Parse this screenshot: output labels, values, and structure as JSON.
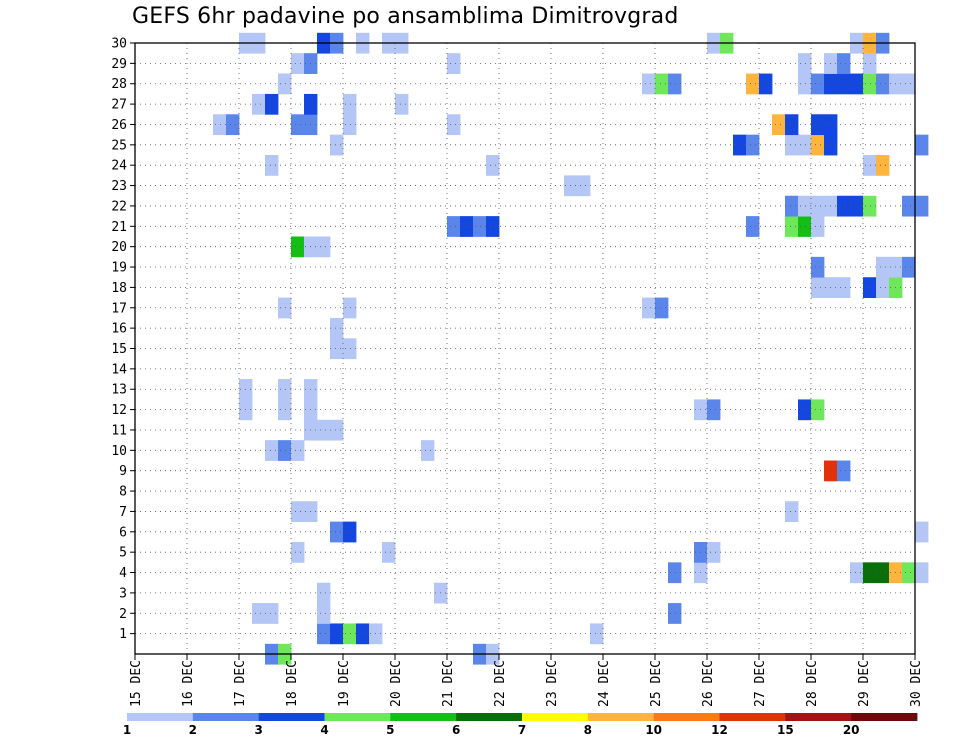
{
  "chart_data": {
    "type": "heatmap",
    "title": "GEFS 6hr padavine po ansamblima Dimitrovgrad",
    "xlabel": "",
    "ylabel": "",
    "x_ticks": [
      "15 DEC",
      "16 DEC",
      "17 DEC",
      "18 DEC",
      "19 DEC",
      "20 DEC",
      "21 DEC",
      "22 DEC",
      "23 DEC",
      "24 DEC",
      "25 DEC",
      "26 DEC",
      "27 DEC",
      "28 DEC",
      "29 DEC",
      "30 DEC"
    ],
    "xlim": [
      "15 DEC",
      "30 DEC"
    ],
    "time_step_hours": 6,
    "y_members": [
      1,
      2,
      3,
      4,
      5,
      6,
      7,
      8,
      9,
      10,
      11,
      12,
      13,
      14,
      15,
      16,
      17,
      18,
      19,
      20,
      21,
      22,
      23,
      24,
      25,
      26,
      27,
      28,
      29,
      30
    ],
    "ylim": [
      0,
      30
    ],
    "grid": true,
    "legend_placement": "bottom",
    "levels": [
      1,
      2,
      3,
      4,
      5,
      6,
      7,
      8,
      10,
      12,
      15,
      20
    ],
    "level_colors": [
      "#b4c6f5",
      "#5a86ec",
      "#1446e0",
      "#6ee85a",
      "#14be14",
      "#0a6e0a",
      "#ffff00",
      "#ffb43c",
      "#ff7a14",
      "#e1320a",
      "#a51414",
      "#6e0a0a"
    ],
    "cells": [
      {
        "m": 0,
        "d": "17 DEC",
        "h": 12,
        "v": 2.5
      },
      {
        "m": 0,
        "d": "17 DEC",
        "h": 18,
        "v": 4.5
      },
      {
        "m": 0,
        "d": "21 DEC",
        "h": 12,
        "v": 2.5
      },
      {
        "m": 0,
        "d": "21 DEC",
        "h": 18,
        "v": 1.5
      },
      {
        "m": 1,
        "d": "18 DEC",
        "h": 12,
        "v": 2.5
      },
      {
        "m": 1,
        "d": "18 DEC",
        "h": 18,
        "v": 3.5
      },
      {
        "m": 1,
        "d": "19 DEC",
        "h": 0,
        "v": 4.5
      },
      {
        "m": 1,
        "d": "19 DEC",
        "h": 6,
        "v": 3.5
      },
      {
        "m": 1,
        "d": "19 DEC",
        "h": 12,
        "v": 1.5
      },
      {
        "m": 1,
        "d": "23 DEC",
        "h": 18,
        "v": 1.5
      },
      {
        "m": 2,
        "d": "17 DEC",
        "h": 6,
        "v": 1.5
      },
      {
        "m": 2,
        "d": "17 DEC",
        "h": 12,
        "v": 1.5
      },
      {
        "m": 2,
        "d": "18 DEC",
        "h": 12,
        "v": 1.5
      },
      {
        "m": 2,
        "d": "25 DEC",
        "h": 6,
        "v": 2.5
      },
      {
        "m": 3,
        "d": "18 DEC",
        "h": 12,
        "v": 1.5
      },
      {
        "m": 3,
        "d": "20 DEC",
        "h": 18,
        "v": 1.5
      },
      {
        "m": 4,
        "d": "25 DEC",
        "h": 6,
        "v": 2.5
      },
      {
        "m": 4,
        "d": "25 DEC",
        "h": 18,
        "v": 1.5
      },
      {
        "m": 4,
        "d": "28 DEC",
        "h": 18,
        "v": 1.5
      },
      {
        "m": 4,
        "d": "29 DEC",
        "h": 0,
        "v": 6.5
      },
      {
        "m": 4,
        "d": "29 DEC",
        "h": 6,
        "v": 6.5
      },
      {
        "m": 4,
        "d": "29 DEC",
        "h": 12,
        "v": 8.5
      },
      {
        "m": 4,
        "d": "29 DEC",
        "h": 18,
        "v": 4.5
      },
      {
        "m": 4,
        "d": "30 DEC",
        "h": 0,
        "v": 1.5
      },
      {
        "m": 5,
        "d": "18 DEC",
        "h": 0,
        "v": 1.5
      },
      {
        "m": 5,
        "d": "19 DEC",
        "h": 18,
        "v": 1.5
      },
      {
        "m": 5,
        "d": "25 DEC",
        "h": 18,
        "v": 2.5
      },
      {
        "m": 5,
        "d": "26 DEC",
        "h": 0,
        "v": 1.5
      },
      {
        "m": 6,
        "d": "18 DEC",
        "h": 18,
        "v": 2.5
      },
      {
        "m": 6,
        "d": "19 DEC",
        "h": 0,
        "v": 3.5
      },
      {
        "m": 6,
        "d": "30 DEC",
        "h": 0,
        "v": 1.5
      },
      {
        "m": 7,
        "d": "18 DEC",
        "h": 0,
        "v": 1.5
      },
      {
        "m": 7,
        "d": "18 DEC",
        "h": 6,
        "v": 1.5
      },
      {
        "m": 7,
        "d": "27 DEC",
        "h": 12,
        "v": 1.5
      },
      {
        "m": 9,
        "d": "28 DEC",
        "h": 6,
        "v": 12.5
      },
      {
        "m": 9,
        "d": "28 DEC",
        "h": 12,
        "v": 2.5
      },
      {
        "m": 10,
        "d": "17 DEC",
        "h": 12,
        "v": 1.5
      },
      {
        "m": 10,
        "d": "17 DEC",
        "h": 18,
        "v": 2.5
      },
      {
        "m": 10,
        "d": "18 DEC",
        "h": 0,
        "v": 1.5
      },
      {
        "m": 10,
        "d": "20 DEC",
        "h": 12,
        "v": 1.5
      },
      {
        "m": 11,
        "d": "18 DEC",
        "h": 6,
        "v": 1.5
      },
      {
        "m": 11,
        "d": "18 DEC",
        "h": 12,
        "v": 1.5
      },
      {
        "m": 11,
        "d": "18 DEC",
        "h": 18,
        "v": 1.5
      },
      {
        "m": 12,
        "d": "17 DEC",
        "h": 0,
        "v": 1.5
      },
      {
        "m": 12,
        "d": "17 DEC",
        "h": 18,
        "v": 1.5
      },
      {
        "m": 12,
        "d": "18 DEC",
        "h": 6,
        "v": 1.5
      },
      {
        "m": 12,
        "d": "25 DEC",
        "h": 18,
        "v": 1.5
      },
      {
        "m": 12,
        "d": "26 DEC",
        "h": 0,
        "v": 2.5
      },
      {
        "m": 12,
        "d": "27 DEC",
        "h": 18,
        "v": 3.5
      },
      {
        "m": 12,
        "d": "28 DEC",
        "h": 0,
        "v": 4.5
      },
      {
        "m": 13,
        "d": "17 DEC",
        "h": 0,
        "v": 1.5
      },
      {
        "m": 13,
        "d": "17 DEC",
        "h": 18,
        "v": 1.5
      },
      {
        "m": 13,
        "d": "18 DEC",
        "h": 6,
        "v": 1.5
      },
      {
        "m": 15,
        "d": "18 DEC",
        "h": 18,
        "v": 1.5
      },
      {
        "m": 15,
        "d": "19 DEC",
        "h": 0,
        "v": 1.5
      },
      {
        "m": 16,
        "d": "18 DEC",
        "h": 18,
        "v": 1.5
      },
      {
        "m": 17,
        "d": "17 DEC",
        "h": 18,
        "v": 1.5
      },
      {
        "m": 17,
        "d": "19 DEC",
        "h": 0,
        "v": 1.5
      },
      {
        "m": 17,
        "d": "24 DEC",
        "h": 18,
        "v": 1.5
      },
      {
        "m": 17,
        "d": "25 DEC",
        "h": 0,
        "v": 2.5
      },
      {
        "m": 18,
        "d": "28 DEC",
        "h": 0,
        "v": 1.5
      },
      {
        "m": 18,
        "d": "28 DEC",
        "h": 6,
        "v": 1.5
      },
      {
        "m": 18,
        "d": "28 DEC",
        "h": 12,
        "v": 1.5
      },
      {
        "m": 18,
        "d": "29 DEC",
        "h": 0,
        "v": 3.5
      },
      {
        "m": 18,
        "d": "29 DEC",
        "h": 6,
        "v": 1.5
      },
      {
        "m": 18,
        "d": "29 DEC",
        "h": 12,
        "v": 4.5
      },
      {
        "m": 19,
        "d": "28 DEC",
        "h": 0,
        "v": 2.5
      },
      {
        "m": 19,
        "d": "29 DEC",
        "h": 6,
        "v": 1.5
      },
      {
        "m": 19,
        "d": "29 DEC",
        "h": 12,
        "v": 1.5
      },
      {
        "m": 19,
        "d": "29 DEC",
        "h": 18,
        "v": 2.5
      },
      {
        "m": 20,
        "d": "18 DEC",
        "h": 0,
        "v": 5.5
      },
      {
        "m": 20,
        "d": "18 DEC",
        "h": 6,
        "v": 1.5
      },
      {
        "m": 20,
        "d": "18 DEC",
        "h": 12,
        "v": 1.5
      },
      {
        "m": 21,
        "d": "21 DEC",
        "h": 0,
        "v": 2.5
      },
      {
        "m": 21,
        "d": "21 DEC",
        "h": 6,
        "v": 3.5
      },
      {
        "m": 21,
        "d": "21 DEC",
        "h": 12,
        "v": 2.5
      },
      {
        "m": 21,
        "d": "21 DEC",
        "h": 18,
        "v": 3.5
      },
      {
        "m": 21,
        "d": "26 DEC",
        "h": 18,
        "v": 2.5
      },
      {
        "m": 21,
        "d": "27 DEC",
        "h": 12,
        "v": 4.5
      },
      {
        "m": 21,
        "d": "27 DEC",
        "h": 18,
        "v": 5.5
      },
      {
        "m": 21,
        "d": "28 DEC",
        "h": 0,
        "v": 1.5
      },
      {
        "m": 22,
        "d": "27 DEC",
        "h": 12,
        "v": 2.5
      },
      {
        "m": 22,
        "d": "27 DEC",
        "h": 18,
        "v": 1.5
      },
      {
        "m": 22,
        "d": "28 DEC",
        "h": 0,
        "v": 1.5
      },
      {
        "m": 22,
        "d": "28 DEC",
        "h": 6,
        "v": 1.5
      },
      {
        "m": 22,
        "d": "28 DEC",
        "h": 12,
        "v": 3.5
      },
      {
        "m": 22,
        "d": "28 DEC",
        "h": 18,
        "v": 3.5
      },
      {
        "m": 22,
        "d": "29 DEC",
        "h": 0,
        "v": 4.5
      },
      {
        "m": 22,
        "d": "29 DEC",
        "h": 18,
        "v": 2.5
      },
      {
        "m": 22,
        "d": "30 DEC",
        "h": 0,
        "v": 2.5
      },
      {
        "m": 23,
        "d": "23 DEC",
        "h": 6,
        "v": 1.5
      },
      {
        "m": 23,
        "d": "23 DEC",
        "h": 12,
        "v": 1.5
      },
      {
        "m": 24,
        "d": "17 DEC",
        "h": 12,
        "v": 1.5
      },
      {
        "m": 24,
        "d": "21 DEC",
        "h": 18,
        "v": 1.5
      },
      {
        "m": 24,
        "d": "29 DEC",
        "h": 0,
        "v": 1.5
      },
      {
        "m": 24,
        "d": "29 DEC",
        "h": 6,
        "v": 8.5
      },
      {
        "m": 25,
        "d": "18 DEC",
        "h": 18,
        "v": 1.5
      },
      {
        "m": 25,
        "d": "26 DEC",
        "h": 12,
        "v": 3.5
      },
      {
        "m": 25,
        "d": "26 DEC",
        "h": 18,
        "v": 2.5
      },
      {
        "m": 25,
        "d": "27 DEC",
        "h": 12,
        "v": 1.5
      },
      {
        "m": 25,
        "d": "27 DEC",
        "h": 18,
        "v": 1.5
      },
      {
        "m": 25,
        "d": "28 DEC",
        "h": 0,
        "v": 8.5
      },
      {
        "m": 25,
        "d": "28 DEC",
        "h": 6,
        "v": 3.5
      },
      {
        "m": 25,
        "d": "30 DEC",
        "h": 0,
        "v": 2.5
      },
      {
        "m": 26,
        "d": "16 DEC",
        "h": 12,
        "v": 1.5
      },
      {
        "m": 26,
        "d": "16 DEC",
        "h": 18,
        "v": 2.5
      },
      {
        "m": 26,
        "d": "18 DEC",
        "h": 0,
        "v": 2.5
      },
      {
        "m": 26,
        "d": "18 DEC",
        "h": 6,
        "v": 2.5
      },
      {
        "m": 26,
        "d": "19 DEC",
        "h": 0,
        "v": 1.5
      },
      {
        "m": 26,
        "d": "21 DEC",
        "h": 0,
        "v": 1.5
      },
      {
        "m": 26,
        "d": "27 DEC",
        "h": 6,
        "v": 8.5
      },
      {
        "m": 26,
        "d": "27 DEC",
        "h": 12,
        "v": 3.5
      },
      {
        "m": 26,
        "d": "28 DEC",
        "h": 0,
        "v": 3.5
      },
      {
        "m": 26,
        "d": "28 DEC",
        "h": 6,
        "v": 3.5
      },
      {
        "m": 27,
        "d": "17 DEC",
        "h": 6,
        "v": 1.5
      },
      {
        "m": 27,
        "d": "17 DEC",
        "h": 12,
        "v": 3.5
      },
      {
        "m": 27,
        "d": "18 DEC",
        "h": 6,
        "v": 3.5
      },
      {
        "m": 27,
        "d": "19 DEC",
        "h": 0,
        "v": 1.5
      },
      {
        "m": 27,
        "d": "20 DEC",
        "h": 0,
        "v": 1.5
      },
      {
        "m": 28,
        "d": "17 DEC",
        "h": 18,
        "v": 1.5
      },
      {
        "m": 28,
        "d": "24 DEC",
        "h": 18,
        "v": 1.5
      },
      {
        "m": 28,
        "d": "25 DEC",
        "h": 0,
        "v": 4.5
      },
      {
        "m": 28,
        "d": "25 DEC",
        "h": 6,
        "v": 2.5
      },
      {
        "m": 28,
        "d": "26 DEC",
        "h": 18,
        "v": 8.5
      },
      {
        "m": 28,
        "d": "27 DEC",
        "h": 0,
        "v": 3.5
      },
      {
        "m": 28,
        "d": "27 DEC",
        "h": 18,
        "v": 1.5
      },
      {
        "m": 28,
        "d": "28 DEC",
        "h": 0,
        "v": 2.5
      },
      {
        "m": 28,
        "d": "28 DEC",
        "h": 6,
        "v": 3.5
      },
      {
        "m": 28,
        "d": "28 DEC",
        "h": 12,
        "v": 3.5
      },
      {
        "m": 28,
        "d": "28 DEC",
        "h": 18,
        "v": 3.5
      },
      {
        "m": 28,
        "d": "29 DEC",
        "h": 0,
        "v": 4.5
      },
      {
        "m": 28,
        "d": "29 DEC",
        "h": 6,
        "v": 2.5
      },
      {
        "m": 28,
        "d": "29 DEC",
        "h": 12,
        "v": 1.5
      },
      {
        "m": 28,
        "d": "29 DEC",
        "h": 18,
        "v": 1.5
      },
      {
        "m": 29,
        "d": "18 DEC",
        "h": 0,
        "v": 1.5
      },
      {
        "m": 29,
        "d": "18 DEC",
        "h": 6,
        "v": 2.5
      },
      {
        "m": 29,
        "d": "21 DEC",
        "h": 0,
        "v": 1.5
      },
      {
        "m": 29,
        "d": "27 DEC",
        "h": 18,
        "v": 1.5
      },
      {
        "m": 29,
        "d": "28 DEC",
        "h": 6,
        "v": 1.5
      },
      {
        "m": 29,
        "d": "28 DEC",
        "h": 12,
        "v": 2.5
      },
      {
        "m": 29,
        "d": "29 DEC",
        "h": 0,
        "v": 1.5
      },
      {
        "m": 30,
        "d": "17 DEC",
        "h": 0,
        "v": 1.5
      },
      {
        "m": 30,
        "d": "17 DEC",
        "h": 6,
        "v": 1.5
      },
      {
        "m": 30,
        "d": "18 DEC",
        "h": 12,
        "v": 3.5
      },
      {
        "m": 30,
        "d": "18 DEC",
        "h": 18,
        "v": 2.5
      },
      {
        "m": 30,
        "d": "19 DEC",
        "h": 6,
        "v": 1.5
      },
      {
        "m": 30,
        "d": "19 DEC",
        "h": 18,
        "v": 1.5
      },
      {
        "m": 30,
        "d": "20 DEC",
        "h": 0,
        "v": 1.5
      },
      {
        "m": 30,
        "d": "26 DEC",
        "h": 0,
        "v": 1.5
      },
      {
        "m": 30,
        "d": "26 DEC",
        "h": 6,
        "v": 4.5
      },
      {
        "m": 30,
        "d": "28 DEC",
        "h": 18,
        "v": 1.5
      },
      {
        "m": 30,
        "d": "29 DEC",
        "h": 0,
        "v": 8.5
      },
      {
        "m": 30,
        "d": "29 DEC",
        "h": 6,
        "v": 2.5
      }
    ]
  }
}
